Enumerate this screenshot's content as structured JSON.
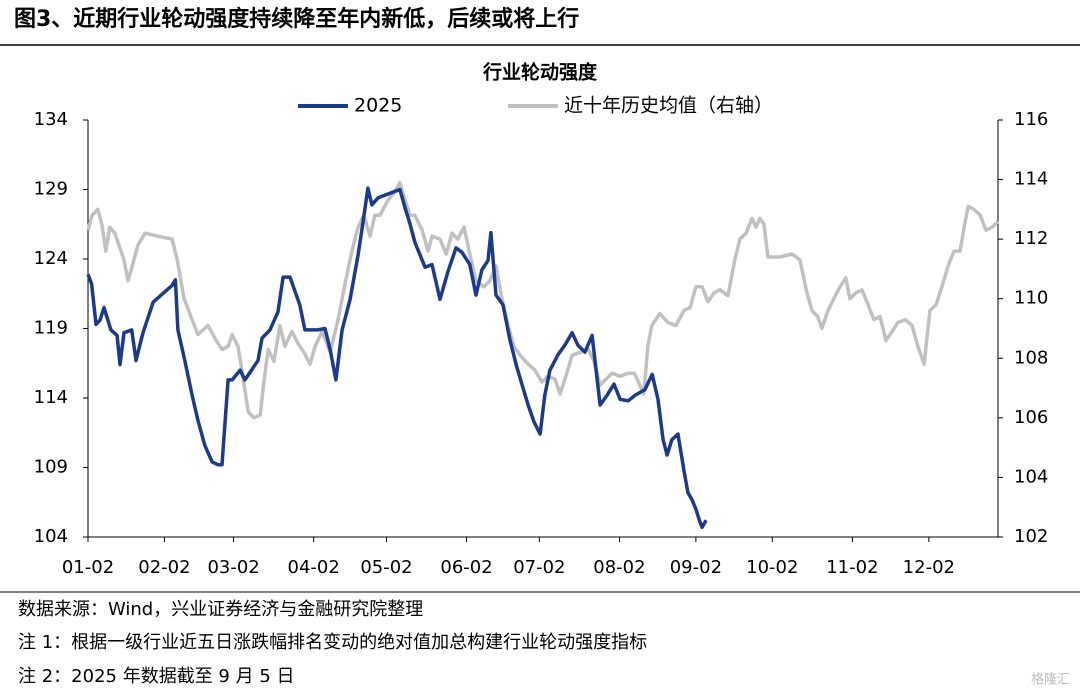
{
  "header": {
    "title": "图3、近期行业轮动强度持续降至年内新低，后续或将上行"
  },
  "chart_data": {
    "type": "line",
    "title": "行业轮动强度",
    "xlim": [
      0,
      250
    ],
    "xticks": [
      {
        "value": 0,
        "label": "01-02"
      },
      {
        "value": 21,
        "label": "02-02"
      },
      {
        "value": 40,
        "label": "03-02"
      },
      {
        "value": 62,
        "label": "04-02"
      },
      {
        "value": 82,
        "label": "05-02"
      },
      {
        "value": 104,
        "label": "06-02"
      },
      {
        "value": 124,
        "label": "07-02"
      },
      {
        "value": 146,
        "label": "08-02"
      },
      {
        "value": 167,
        "label": "09-02"
      },
      {
        "value": 188,
        "label": "10-02"
      },
      {
        "value": 210,
        "label": "11-02"
      },
      {
        "value": 231,
        "label": "12-02"
      }
    ],
    "ylim": [
      104,
      134
    ],
    "yticks": [
      104,
      109,
      114,
      119,
      124,
      129,
      134
    ],
    "y2lim": [
      102,
      116
    ],
    "y2ticks": [
      102,
      104,
      106,
      108,
      110,
      112,
      114,
      116
    ],
    "legend": "top",
    "series": [
      {
        "name": "2025",
        "color": "#1a3a8f",
        "axis": "y",
        "x": [
          0,
          1,
          2.2,
          3.3,
          4.4,
          6.3,
          8,
          8.8,
          9.9,
          12,
          13.2,
          15.1,
          17.9,
          23.1,
          24,
          24.7,
          26.6,
          28.6,
          30.2,
          32.1,
          34.1,
          35.7,
          36.8,
          38.5,
          39.6,
          41.8,
          43.1,
          46.7,
          47.8,
          50,
          52.2,
          53.6,
          55.5,
          58.2,
          59.6,
          61.5,
          63.2,
          65.1,
          66.5,
          68.1,
          69.8,
          72,
          74.2,
          75.3,
          76.9,
          78,
          79.7,
          81.6,
          85.7,
          87.1,
          88.5,
          89.8,
          91.2,
          92.6,
          94.5,
          96.7,
          98.9,
          101.1,
          102.7,
          104.9,
          106.6,
          108.2,
          109.9,
          110.7,
          112.1,
          114,
          115.9,
          117.6,
          119.2,
          120.9,
          122.5,
          124.2,
          125.5,
          126.9,
          129.1,
          131,
          133,
          134.6,
          136.5,
          138.5,
          140.7,
          142.6,
          144.5,
          146.2,
          148.4,
          150.3,
          153,
          155,
          156.6,
          158,
          159.1,
          160.4,
          162.1,
          163.7,
          164.8,
          165.9,
          167,
          168.1,
          168.7,
          169.8
        ],
        "values": [
          122.9,
          122.2,
          119.3,
          119.6,
          120.5,
          118.9,
          118.5,
          116.4,
          118.7,
          118.9,
          116.7,
          118.7,
          120.9,
          122.1,
          122.5,
          118.9,
          116.7,
          114.2,
          112.4,
          110.6,
          109.4,
          109.2,
          109.2,
          115.3,
          115.3,
          116.0,
          115.3,
          116.7,
          118.3,
          118.9,
          120.2,
          122.7,
          122.7,
          120.7,
          118.9,
          118.9,
          118.9,
          119.0,
          117.5,
          115.3,
          118.9,
          121.1,
          124.3,
          126.2,
          129.1,
          127.9,
          128.4,
          128.6,
          129.0,
          127.7,
          126.5,
          125.2,
          124.3,
          123.4,
          123.6,
          121.1,
          123.1,
          124.8,
          124.5,
          123.6,
          121.4,
          123.2,
          123.9,
          125.9,
          121.4,
          120.7,
          118.2,
          116.4,
          115.0,
          113.5,
          112.3,
          111.4,
          114.2,
          116.0,
          117.1,
          117.8,
          118.7,
          117.8,
          117.3,
          118.5,
          113.5,
          114.2,
          115.0,
          113.9,
          113.8,
          114.2,
          114.6,
          115.7,
          113.9,
          111.0,
          109.9,
          111.0,
          111.4,
          108.8,
          107.2,
          106.7,
          106.0,
          105.1,
          104.7,
          105.2
        ]
      },
      {
        "name": "近十年历史均值（右轴）",
        "color": "#c0c0c0",
        "axis": "y2",
        "x": [
          0,
          1.1,
          2.7,
          3.8,
          4.9,
          6,
          7.4,
          8.8,
          9.9,
          11,
          12.4,
          13.7,
          15.7,
          19.2,
          23.1,
          24.5,
          26.4,
          28.6,
          30.2,
          33,
          35.2,
          36.8,
          38.5,
          39.6,
          41.2,
          42.9,
          44,
          45.6,
          47.3,
          48.4,
          49.5,
          51.1,
          52.7,
          54.1,
          56,
          57.7,
          59.3,
          61,
          62.4,
          64.3,
          66.5,
          68.7,
          70.6,
          72.5,
          74.2,
          75.8,
          77.5,
          78.8,
          80.2,
          82.4,
          84.3,
          85.7,
          86.8,
          88.5,
          89.8,
          91.8,
          93.4,
          94.5,
          96.7,
          98.4,
          100,
          101.6,
          103.3,
          104.9,
          106.6,
          108.8,
          110.4,
          112.1,
          113.7,
          115.4,
          117,
          118.7,
          120.9,
          122.8,
          124.7,
          126.4,
          128.3,
          129.7,
          131.3,
          133,
          135.2,
          137.4,
          139,
          140.7,
          142.3,
          144,
          146.2,
          148.4,
          150.1,
          151.6,
          152.7,
          153.8,
          154.9,
          157.1,
          159.3,
          161.5,
          163.7,
          165.4,
          167,
          168.7,
          170.3,
          172,
          173.6,
          175.8,
          177.7,
          179.1,
          180.8,
          182.4,
          183.5,
          184.6,
          185.7,
          186.8,
          190.1,
          193.4,
          195.6,
          197.3,
          198.9,
          200.5,
          201.6,
          203.3,
          204.9,
          206.6,
          208.2,
          209.3,
          211,
          212.6,
          214.3,
          215.9,
          217.6,
          219.2,
          220.9,
          222.5,
          224.5,
          226.4,
          228,
          229.7,
          231.3,
          233,
          234.6,
          236.3,
          237.9,
          239.6,
          240.7,
          241.8,
          243.4,
          245.1,
          246.7,
          248.4,
          250
        ],
        "values": [
          112.3,
          112.8,
          113.0,
          112.5,
          111.6,
          112.4,
          112.2,
          111.7,
          111.3,
          110.6,
          111.2,
          111.8,
          112.2,
          112.1,
          112.0,
          111.3,
          110.0,
          109.3,
          108.8,
          109.1,
          108.6,
          108.3,
          108.4,
          108.8,
          108.4,
          107.1,
          106.2,
          106.0,
          106.1,
          107.3,
          108.3,
          107.9,
          109.1,
          108.4,
          108.9,
          108.5,
          108.2,
          107.8,
          108.4,
          108.9,
          108.2,
          109.3,
          110.5,
          111.6,
          112.4,
          112.8,
          112.1,
          112.8,
          112.8,
          113.3,
          113.6,
          113.9,
          113.4,
          112.8,
          112.8,
          112.3,
          111.6,
          112.1,
          112.0,
          111.5,
          112.2,
          112.0,
          112.4,
          111.5,
          110.6,
          110.4,
          110.6,
          111.1,
          110.0,
          109.1,
          108.4,
          108.1,
          107.8,
          107.6,
          107.2,
          107.4,
          107.3,
          106.8,
          107.4,
          108.1,
          108.2,
          108.3,
          107.9,
          107.1,
          107.3,
          107.5,
          107.4,
          107.5,
          107.5,
          107.1,
          106.8,
          108.4,
          109.1,
          109.5,
          109.2,
          109.1,
          109.6,
          109.7,
          110.4,
          110.4,
          109.9,
          110.2,
          110.3,
          110.1,
          111.3,
          112.0,
          112.2,
          112.7,
          112.4,
          112.7,
          112.5,
          111.4,
          111.4,
          111.5,
          111.3,
          110.3,
          109.6,
          109.4,
          109.0,
          109.6,
          110.0,
          110.4,
          110.7,
          110.0,
          110.2,
          110.3,
          109.8,
          109.3,
          109.4,
          108.6,
          108.9,
          109.2,
          109.3,
          109.1,
          108.4,
          107.8,
          109.6,
          109.8,
          110.4,
          111.1,
          111.6,
          111.6,
          112.4,
          113.1,
          113.0,
          112.8,
          112.3,
          112.4,
          112.6
        ]
      }
    ]
  },
  "notes": [
    "数据来源：Wind，兴业证券经济与金融研究院整理",
    "注 1：根据一级行业近五日涨跌幅排名变动的绝对值加总构建行业轮动强度指标",
    "注 2：2025 年数据截至 9 月 5 日"
  ],
  "watermark": "格隆汇"
}
